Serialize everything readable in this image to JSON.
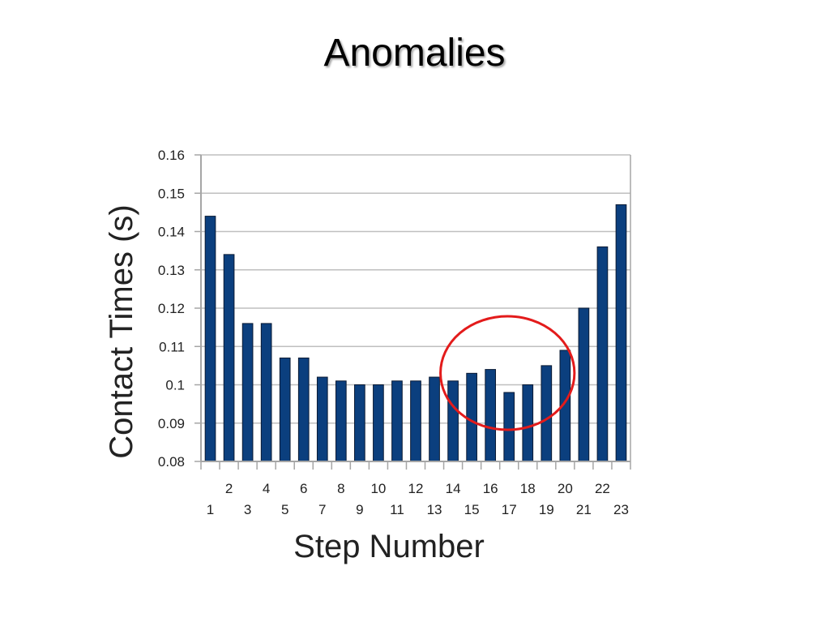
{
  "slide": {
    "title": "Anomalies"
  },
  "chart_data": {
    "type": "bar",
    "title": "",
    "xlabel": "Step Number",
    "ylabel": "Contact Times (s)",
    "categories": [
      "1",
      "2",
      "3",
      "4",
      "5",
      "6",
      "7",
      "8",
      "9",
      "10",
      "11",
      "12",
      "13",
      "14",
      "15",
      "16",
      "17",
      "18",
      "19",
      "20",
      "21",
      "22",
      "23"
    ],
    "values": [
      0.144,
      0.134,
      0.116,
      0.116,
      0.107,
      0.107,
      0.102,
      0.101,
      0.1,
      0.1,
      0.101,
      0.101,
      0.102,
      0.101,
      0.103,
      0.104,
      0.098,
      0.1,
      0.105,
      0.109,
      0.12,
      0.136,
      0.147
    ],
    "ylim": [
      0.08,
      0.16
    ],
    "yticks": [
      "0.08",
      "0.09",
      "0.1",
      "0.11",
      "0.12",
      "0.13",
      "0.14",
      "0.15",
      "0.16"
    ],
    "grid": true,
    "legend": "none",
    "highlight": {
      "shape": "ellipse",
      "around_categories": [
        "14",
        "20"
      ],
      "color": "#e31b1b"
    },
    "colors": {
      "bar": "#0b3f7e",
      "bar_outline": "#0a1a33",
      "grid": "#bfbfbf",
      "axis": "#a6a6a6"
    }
  }
}
